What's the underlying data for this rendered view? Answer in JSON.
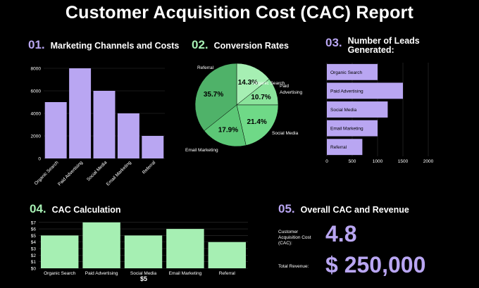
{
  "title": "Customer Acquisition Cost (CAC) Report",
  "accent_purple": "#b9a6f2",
  "accent_green": "#a6efb3",
  "sections": {
    "s1": {
      "num": "01.",
      "label": "Marketing Channels and Costs"
    },
    "s2": {
      "num": "02.",
      "label": "Conversion Rates"
    },
    "s3": {
      "num": "03.",
      "label": "Number of Leads Generated:"
    },
    "s4": {
      "num": "04.",
      "label": "CAC Calculation"
    },
    "s5": {
      "num": "05.",
      "label": "Overall CAC and Revenue"
    }
  },
  "summary": {
    "cac_label": "Customer Acquisition Cost (CAC):",
    "cac_value": "4.8",
    "revenue_label": "Total Revenue:",
    "revenue_value": "$ 250,000",
    "extra_note": "$5"
  },
  "chart_data": [
    {
      "type": "bar",
      "title": "Marketing Channels and Costs",
      "categories": [
        "Organic Search",
        "Paid Advertising",
        "Social Media",
        "Email Marketing",
        "Referral"
      ],
      "values": [
        5000,
        8000,
        6000,
        4000,
        2000
      ],
      "yticks": [
        "0",
        "2000",
        "4000",
        "6000",
        "8000"
      ],
      "ylim": [
        0,
        8000
      ],
      "color": "#b9a6f2"
    },
    {
      "type": "pie",
      "title": "Conversion Rates",
      "categories": [
        "Organic Search",
        "Paid Advertising",
        "Social Media",
        "Email Marketing",
        "Referral"
      ],
      "values": [
        14.3,
        10.7,
        21.4,
        17.9,
        35.7
      ],
      "labels": [
        "14.3%",
        "10.7%",
        "21.4%",
        "17.9%",
        "35.7%"
      ],
      "colors": [
        "#a6efb3",
        "#8ae39b",
        "#6fd987",
        "#5cc776",
        "#4fb269"
      ]
    },
    {
      "type": "bar",
      "orientation": "horizontal",
      "title": "Number of Leads Generated:",
      "categories": [
        "Organic Search",
        "Paid Advertising",
        "Social Media",
        "Email Marketing",
        "Referral"
      ],
      "values": [
        1000,
        1500,
        1200,
        1000,
        700
      ],
      "xticks": [
        "0",
        "500",
        "1000",
        "1500",
        "2000"
      ],
      "xlim": [
        0,
        2000
      ],
      "color": "#b9a6f2"
    },
    {
      "type": "bar",
      "title": "CAC Calculation",
      "categories": [
        "Organic Search",
        "Paid Advertising",
        "Social Media",
        "Email Marketing",
        "Referral"
      ],
      "values": [
        5,
        7,
        5,
        6,
        4
      ],
      "yticks": [
        "$0",
        "$1",
        "$2",
        "$3",
        "$4",
        "$5",
        "$6",
        "$7"
      ],
      "ylim": [
        0,
        7.3
      ],
      "color": "#a6efb3"
    }
  ]
}
